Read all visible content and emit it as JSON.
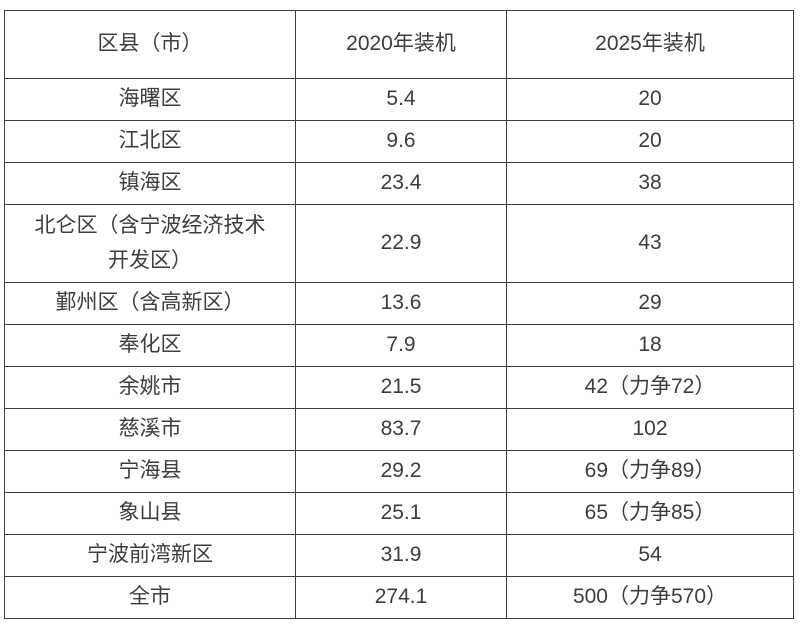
{
  "page": {
    "background": "#ffffff"
  },
  "table": {
    "border_color": "#3d3d3d",
    "text_color": "#3d3d3d",
    "headers": [
      "区县（市）",
      "2020年装机",
      "2025年装机"
    ],
    "rows": [
      {
        "district": "海曙区",
        "installed_2020": "5.4",
        "installed_2025": "20"
      },
      {
        "district": "江北区",
        "installed_2020": "9.6",
        "installed_2025": "20"
      },
      {
        "district": "镇海区",
        "installed_2020": "23.4",
        "installed_2025": "38"
      },
      {
        "district": "北仑区（含宁波经济技术开发区）",
        "installed_2020": "22.9",
        "installed_2025": "43"
      },
      {
        "district": "鄞州区（含高新区）",
        "installed_2020": "13.6",
        "installed_2025": "29"
      },
      {
        "district": "奉化区",
        "installed_2020": "7.9",
        "installed_2025": "18"
      },
      {
        "district": "余姚市",
        "installed_2020": "21.5",
        "installed_2025": "42（力争72）"
      },
      {
        "district": "慈溪市",
        "installed_2020": "83.7",
        "installed_2025": "102"
      },
      {
        "district": "宁海县",
        "installed_2020": "29.2",
        "installed_2025": "69（力争89）"
      },
      {
        "district": "象山县",
        "installed_2020": "25.1",
        "installed_2025": "65（力争85）"
      },
      {
        "district": "宁波前湾新区",
        "installed_2020": "31.9",
        "installed_2025": "54"
      },
      {
        "district": "全市",
        "installed_2020": "274.1",
        "installed_2025": "500（力争570）"
      }
    ]
  },
  "chart_data": {
    "type": "table",
    "columns": [
      "区县（市）",
      "2020年装机",
      "2025年装机"
    ],
    "rows": [
      [
        "海曙区",
        5.4,
        "20"
      ],
      [
        "江北区",
        9.6,
        "20"
      ],
      [
        "镇海区",
        23.4,
        "38"
      ],
      [
        "北仑区（含宁波经济技术开发区）",
        22.9,
        "43"
      ],
      [
        "鄞州区（含高新区）",
        13.6,
        "29"
      ],
      [
        "奉化区",
        7.9,
        "18"
      ],
      [
        "余姚市",
        21.5,
        "42（力争72）"
      ],
      [
        "慈溪市",
        83.7,
        "102"
      ],
      [
        "宁海县",
        29.2,
        "69（力争89）"
      ],
      [
        "象山县",
        25.1,
        "65（力争85）"
      ],
      [
        "宁波前湾新区",
        31.9,
        "54"
      ],
      [
        "全市",
        274.1,
        "500（力争570）"
      ]
    ]
  }
}
